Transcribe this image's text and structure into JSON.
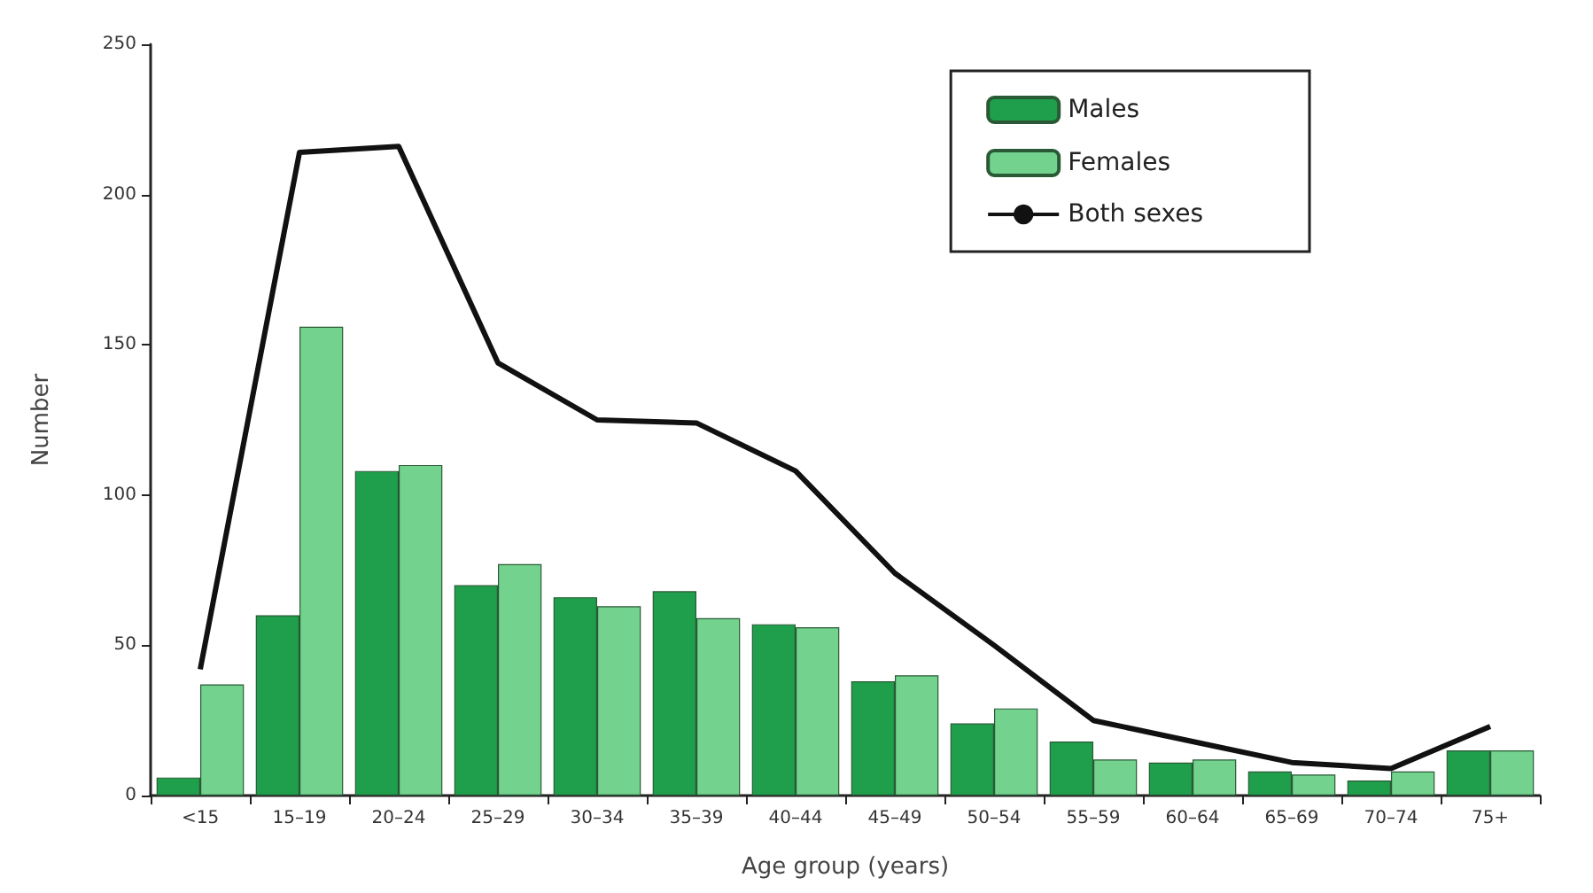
{
  "chart_data": {
    "type": "bar",
    "xlabel": "Age group (years)",
    "ylabel": "Number",
    "categories": [
      "<15",
      "15–19",
      "20–24",
      "25–29",
      "30–34",
      "35–39",
      "40–44",
      "45–49",
      "50–54",
      "55–59",
      "60–64",
      "65–69",
      "70–74",
      "75+"
    ],
    "series": [
      {
        "name": "Males",
        "color": "#1f9f4b",
        "values": [
          6,
          60,
          108,
          70,
          66,
          68,
          57,
          38,
          24,
          18,
          11,
          8,
          5,
          15
        ]
      },
      {
        "name": "Females",
        "color": "#72d28e",
        "values": [
          37,
          156,
          110,
          77,
          63,
          59,
          56,
          40,
          29,
          12,
          12,
          7,
          8,
          15
        ]
      },
      {
        "name": "Both sexes",
        "type": "line",
        "color": "#111111",
        "values": [
          42,
          214,
          216,
          144,
          125,
          124,
          108,
          74,
          50,
          25,
          18,
          11,
          9,
          23
        ]
      }
    ],
    "ylim": [
      0,
      250
    ],
    "yticks": [
      0,
      50,
      100,
      150,
      200,
      250
    ],
    "grid": false,
    "legend": "top right",
    "marker": "none"
  }
}
